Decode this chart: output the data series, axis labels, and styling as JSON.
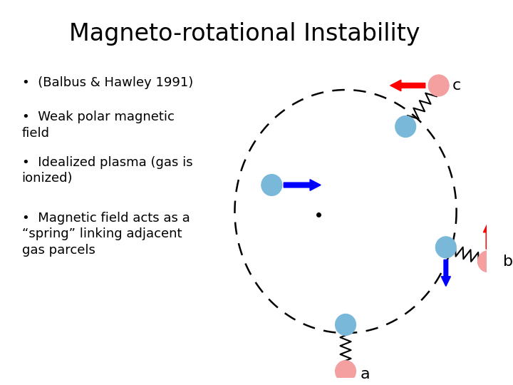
{
  "title": "Magneto-rotational Instability",
  "title_fontsize": 24,
  "bullet_points": [
    "(Balbus & Hawley 1991)",
    "Weak polar magnetic\nfield",
    "Idealized plasma (gas is\nionized)",
    "Magnetic field acts as a\n“spring” linking adjacent\ngas parcels"
  ],
  "bullet_fontsize": 13,
  "background_color": "#ffffff",
  "blue_ball_color": "#7ab8d9",
  "red_ball_color": "#f4a0a0",
  "label_fontsize": 16
}
